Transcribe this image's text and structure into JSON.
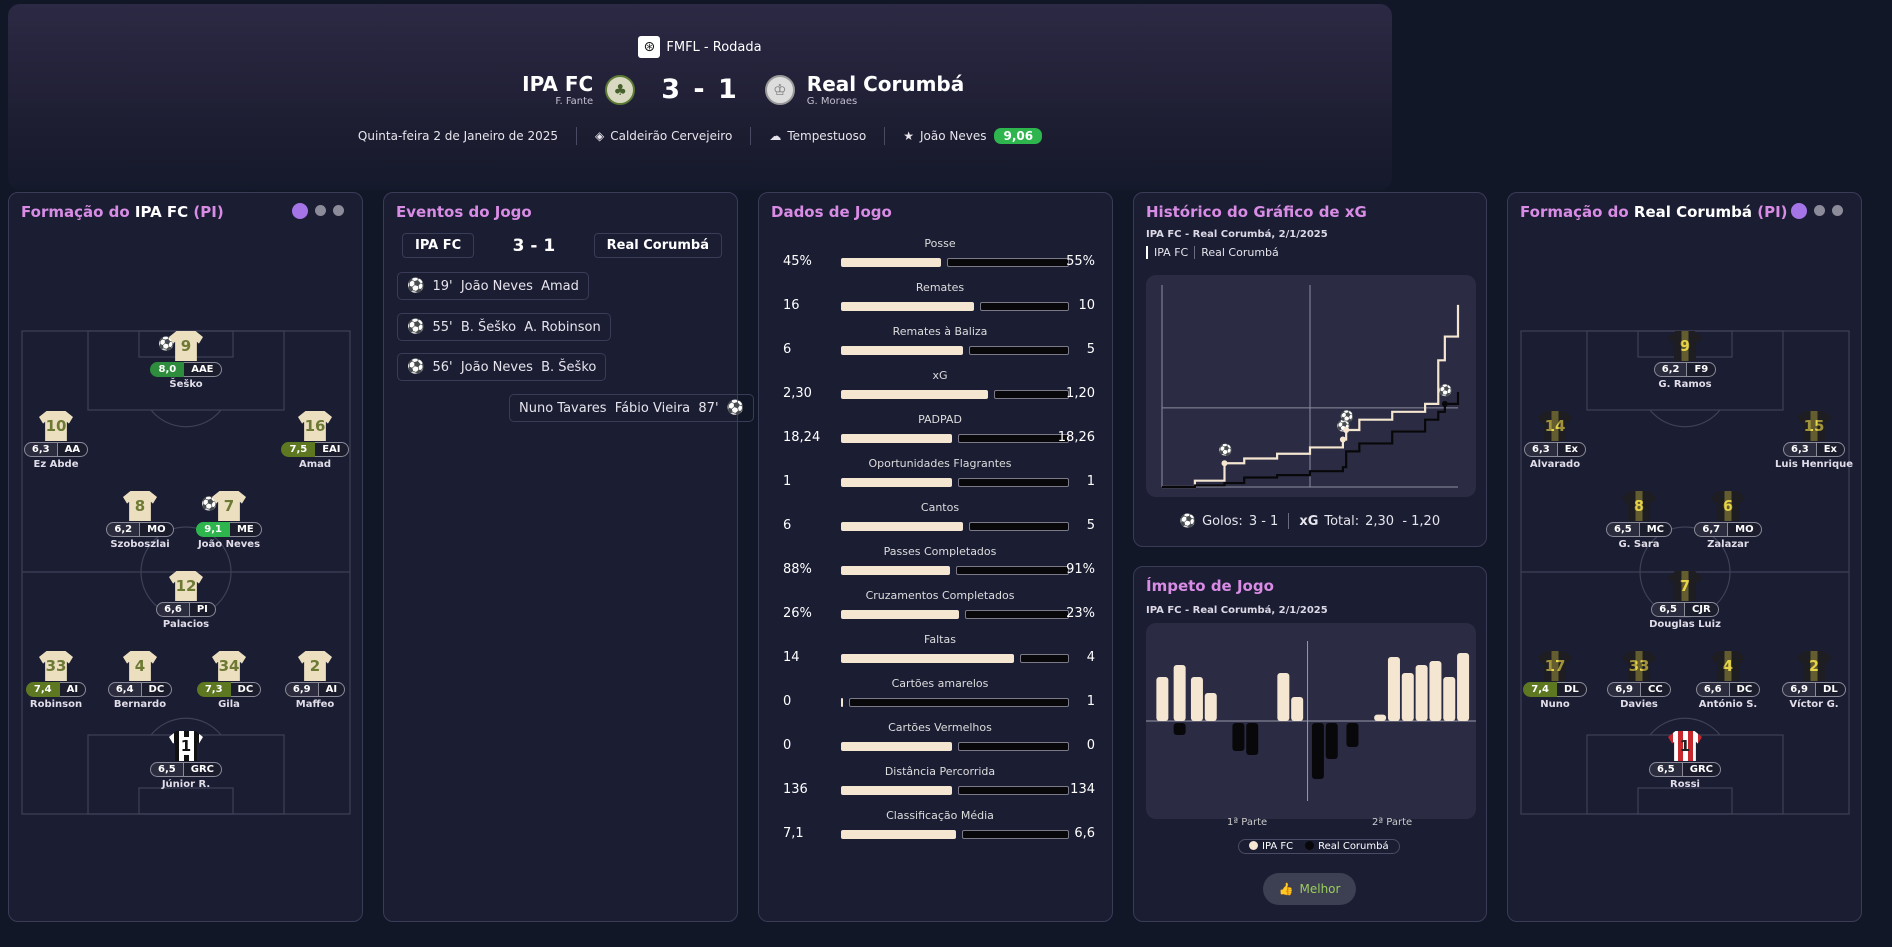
{
  "header": {
    "competition": "FMFL - Rodada",
    "home": {
      "name": "IPA FC",
      "coach": "F. Fante"
    },
    "away": {
      "name": "Real Corumbá",
      "coach": "G. Moraes"
    },
    "score": "3 - 1",
    "date": "Quinta-feira 2 de Janeiro de 2025",
    "stadium": "Caldeirão Cervejeiro",
    "weather": "Tempestuoso",
    "potm": "João Neves",
    "potm_rating": "9,06"
  },
  "home_lineup": {
    "title_prefix": "Formação do ",
    "team": "IPA FC",
    "suffix": " (PI)",
    "players": [
      {
        "num": "9",
        "rating": "8,0",
        "pos": "AAE",
        "name": "Šeško"
      },
      {
        "num": "10",
        "rating": "6,3",
        "pos": "AA",
        "name": "Ez Abde"
      },
      {
        "num": "16",
        "rating": "7,5",
        "pos": "EAI",
        "name": "Amad"
      },
      {
        "num": "8",
        "rating": "6,2",
        "pos": "MO",
        "name": "Szoboszlai"
      },
      {
        "num": "7",
        "rating": "9,1",
        "pos": "ME",
        "name": "João Neves"
      },
      {
        "num": "12",
        "rating": "6,6",
        "pos": "PI",
        "name": "Palacios"
      },
      {
        "num": "33",
        "rating": "7,4",
        "pos": "AI",
        "name": "Robinson"
      },
      {
        "num": "4",
        "rating": "6,4",
        "pos": "DC",
        "name": "Bernardo"
      },
      {
        "num": "34",
        "rating": "7,3",
        "pos": "DC",
        "name": "Gila"
      },
      {
        "num": "2",
        "rating": "6,9",
        "pos": "AI",
        "name": "Maffeo"
      },
      {
        "num": "1",
        "rating": "6,5",
        "pos": "GRC",
        "name": "Júnior R."
      }
    ]
  },
  "away_lineup": {
    "title_prefix": "Formação do ",
    "team": "Real Corumbá",
    "suffix": " (PI)",
    "players": [
      {
        "num": "9",
        "rating": "6,2",
        "pos": "F9",
        "name": "G. Ramos"
      },
      {
        "num": "14",
        "rating": "6,3",
        "pos": "Ex",
        "name": "Alvarado"
      },
      {
        "num": "15",
        "rating": "6,3",
        "pos": "Ex",
        "name": "Luis Henrique"
      },
      {
        "num": "8",
        "rating": "6,5",
        "pos": "MC",
        "name": "G. Sara"
      },
      {
        "num": "6",
        "rating": "6,7",
        "pos": "MO",
        "name": "Zalazar"
      },
      {
        "num": "7",
        "rating": "6,5",
        "pos": "CJR",
        "name": "Douglas Luiz"
      },
      {
        "num": "17",
        "rating": "7,4",
        "pos": "DL",
        "name": "Nuno"
      },
      {
        "num": "33",
        "rating": "6,9",
        "pos": "CC",
        "name": "Davies"
      },
      {
        "num": "4",
        "rating": "6,6",
        "pos": "DC",
        "name": "António S."
      },
      {
        "num": "2",
        "rating": "6,9",
        "pos": "DL",
        "name": "Víctor G."
      },
      {
        "num": "1",
        "rating": "6,5",
        "pos": "GRC",
        "name": "Rossi"
      }
    ]
  },
  "events": {
    "title": "Eventos do Jogo",
    "home": "IPA FC",
    "score": "3 - 1",
    "away": "Real Corumbá",
    "items": [
      {
        "text": "19'  João Neves  Amad"
      },
      {
        "text": "55'  B. Šeško  A. Robinson"
      },
      {
        "text": "56'  João Neves  B. Šeško"
      },
      {
        "text": "Nuno Tavares  Fábio Vieira  87'"
      }
    ]
  },
  "stats": {
    "title": "Dados de Jogo",
    "rows": [
      {
        "label": "Posse",
        "home": "45%",
        "away": "55%",
        "share": 0.45
      },
      {
        "label": "Remates",
        "home": "16",
        "away": "10",
        "share": 0.6
      },
      {
        "label": "Remates à Baliza",
        "home": "6",
        "away": "5",
        "share": 0.55
      },
      {
        "label": "xG",
        "home": "2,30",
        "away": "1,20",
        "share": 0.66
      },
      {
        "label": "PADPAD",
        "home": "18,24",
        "away": "18,26",
        "share": 0.5
      },
      {
        "label": "Oportunidades Flagrantes",
        "home": "1",
        "away": "1",
        "share": 0.5
      },
      {
        "label": "Cantos",
        "home": "6",
        "away": "5",
        "share": 0.55
      },
      {
        "label": "Passes Completados",
        "home": "88%",
        "away": "91%",
        "share": 0.49
      },
      {
        "label": "Cruzamentos Completados",
        "home": "26%",
        "away": "23%",
        "share": 0.53
      },
      {
        "label": "Faltas",
        "home": "14",
        "away": "4",
        "share": 0.78
      },
      {
        "label": "Cartões amarelos",
        "home": "0",
        "away": "1",
        "share": 0.01
      },
      {
        "label": "Cartões Vermelhos",
        "home": "0",
        "away": "0",
        "share": 0.5
      },
      {
        "label": "Distância Percorrida",
        "home": "136",
        "away": "134",
        "share": 0.5
      },
      {
        "label": "Classificação Média",
        "home": "7,1",
        "away": "6,6",
        "share": 0.52
      }
    ]
  },
  "xg_panel": {
    "title": "Histórico do Gráfico de xG",
    "subtitle": "IPA FC - Real Corumbá, 2/1/2025",
    "legend": [
      "IPA FC",
      "Real Corumbá"
    ],
    "goals_label": "Golos:",
    "goals_value": "3 - 1",
    "xg_label": "xG",
    "xg_total_label": "Total:",
    "xg_total_value": "2,30  - 1,20"
  },
  "momentum_panel": {
    "title": "Ímpeto de Jogo",
    "subtitle": "IPA FC - Real Corumbá, 2/1/2025",
    "half1": "1ª Parte",
    "half2": "2ª Parte",
    "legend": [
      "IPA FC",
      "Real Corumbá"
    ],
    "better": "Melhor"
  },
  "chart_data": [
    {
      "type": "line",
      "title": "Histórico do Gráfico de xG",
      "x": [
        0,
        10,
        19,
        25,
        35,
        45,
        55,
        56,
        60,
        70,
        80,
        84,
        86,
        90
      ],
      "series": [
        {
          "name": "IPA FC",
          "values": [
            0,
            0.08,
            0.3,
            0.36,
            0.42,
            0.5,
            0.6,
            0.72,
            0.85,
            0.95,
            1.05,
            1.6,
            1.9,
            2.3
          ]
        },
        {
          "name": "Real Corumbá",
          "values": [
            0,
            0.02,
            0.05,
            0.12,
            0.15,
            0.2,
            0.25,
            0.45,
            0.55,
            0.7,
            0.85,
            0.95,
            1.05,
            1.2
          ]
        }
      ]
    },
    {
      "type": "bar",
      "title": "Ímpeto de Jogo",
      "x": [
        3,
        8,
        13,
        17,
        25,
        29,
        38,
        42,
        48,
        52,
        58,
        66,
        70,
        74,
        78,
        82,
        86,
        90
      ],
      "series": [
        {
          "name": "IPA FC",
          "values": [
            0.55,
            0.7,
            0.55,
            0.35,
            0,
            0,
            0.6,
            0.3,
            0,
            0,
            0,
            0.08,
            0.8,
            0.6,
            0.7,
            0.75,
            0.55,
            0.85
          ]
        },
        {
          "name": "Real Corumbá",
          "values": [
            0,
            -0.15,
            0,
            0,
            -0.35,
            -0.4,
            0,
            0,
            -0.7,
            -0.45,
            -0.3,
            0,
            0,
            0,
            0,
            0,
            0,
            0
          ]
        }
      ]
    }
  ]
}
